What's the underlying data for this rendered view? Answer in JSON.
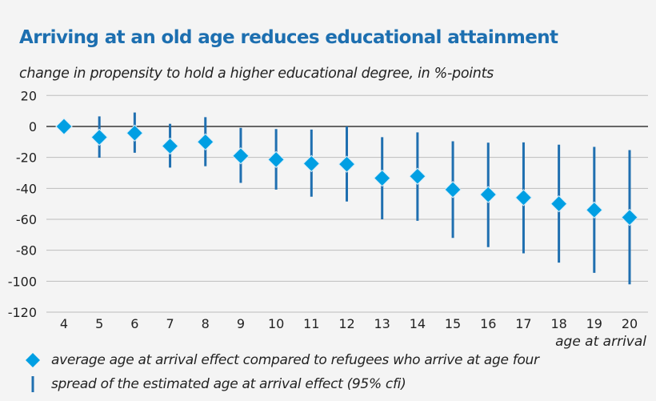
{
  "chart_data": {
    "type": "scatter",
    "title": "Arriving at an old age reduces educational attainment",
    "subtitle": "change in propensity to hold a higher educational degree, in %-points",
    "xlabel": "age at arrival",
    "ylabel": "",
    "ylim": [
      -120,
      20
    ],
    "yticks": [
      "20",
      "0",
      "-20",
      "-40",
      "-60",
      "-80",
      "-100",
      "-120"
    ],
    "ytick_values": [
      20,
      0,
      -20,
      -40,
      -60,
      -80,
      -100,
      -120
    ],
    "categories": [
      "4",
      "5",
      "6",
      "7",
      "8",
      "9",
      "10",
      "11",
      "12",
      "13",
      "14",
      "15",
      "16",
      "17",
      "18",
      "19",
      "20"
    ],
    "grid": true,
    "series": [
      {
        "name": "average age at arrival effect compared to refugees who arrive at age four",
        "marker": "diamond",
        "values": [
          0,
          -7,
          -4.3,
          -12.7,
          -10,
          -19,
          -21.4,
          -24,
          -24.4,
          -33.4,
          -32.2,
          -40.8,
          -44,
          -46,
          -50,
          -54,
          -58.8
        ]
      },
      {
        "name": "spread of the estimated age at arrival effect (95% cfi)",
        "marker": "vertical-line",
        "upper": [
          null,
          6.5,
          9,
          1.7,
          6,
          -0.9,
          -1.7,
          -2,
          0,
          -6.9,
          -3.8,
          -9.6,
          -10.5,
          -10.3,
          -11.8,
          -13.2,
          -15.3
        ],
        "lower": [
          null,
          -20.2,
          -17,
          -26.6,
          -25.7,
          -36.5,
          -40.8,
          -45.4,
          -48.5,
          -60,
          -61,
          -72,
          -78,
          -82,
          -88,
          -94.6,
          -102
        ]
      }
    ],
    "legend_placement": "bottom",
    "colors": {
      "title": "#1d6fb0",
      "point": "#009fe3",
      "interval": "#1f6fb0",
      "grid": "#bdbdbd",
      "zero_line": "#111111"
    }
  }
}
